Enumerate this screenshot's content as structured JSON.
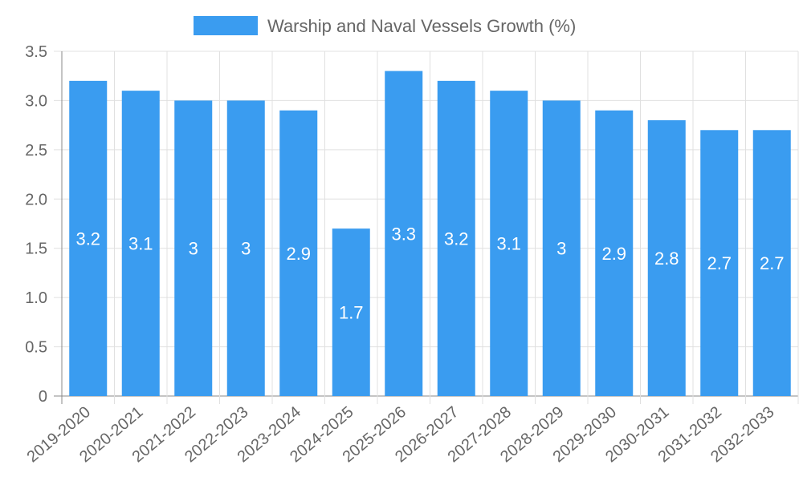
{
  "chart_data": {
    "type": "bar",
    "categories": [
      "2019-2020",
      "2020-2021",
      "2021-2022",
      "2022-2023",
      "2023-2024",
      "2024-2025",
      "2025-2026",
      "2026-2027",
      "2027-2028",
      "2028-2029",
      "2029-2030",
      "2030-2031",
      "2031-2032",
      "2032-2033"
    ],
    "series": [
      {
        "name": "Warship and Naval Vessels Growth (%)",
        "values": [
          3.2,
          3.1,
          3,
          3,
          2.9,
          1.7,
          3.3,
          3.2,
          3.1,
          3,
          2.9,
          2.8,
          2.7,
          2.7
        ],
        "color": "#3a9cf0"
      }
    ],
    "ylim": [
      0,
      3.5
    ],
    "yticks": [
      "0",
      "0.5",
      "1.0",
      "1.5",
      "2.0",
      "2.5",
      "3.0",
      "3.5"
    ],
    "grid": true,
    "legend_position": "top-center",
    "data_labels": [
      "3.2",
      "3.1",
      "3",
      "3",
      "2.9",
      "1.7",
      "3.3",
      "3.2",
      "3.1",
      "3",
      "2.9",
      "2.8",
      "2.7",
      "2.7"
    ]
  }
}
